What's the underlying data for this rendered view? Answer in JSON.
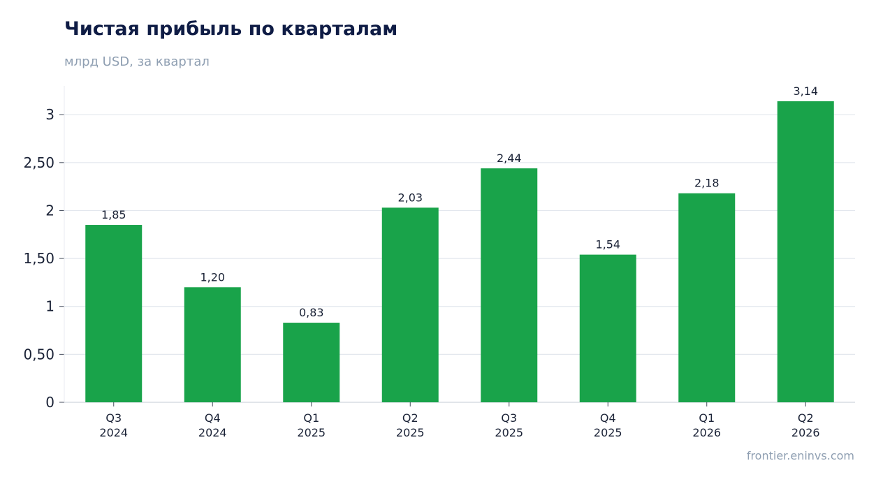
{
  "header": {
    "title": "Чистая прибыль по кварталам",
    "subtitle": "млрд USD, за квартал"
  },
  "footer": {
    "source": "frontier.eninvs.com"
  },
  "colors": {
    "bar": "#19a34a",
    "grid": "#e3e7ee",
    "title": "#0f1c45",
    "muted": "#8f9fb2"
  },
  "chart_data": {
    "type": "bar",
    "title": "Чистая прибыль по кварталам",
    "subtitle": "млрд USD, за квартал",
    "categories": [
      [
        "Q3",
        "2024"
      ],
      [
        "Q4",
        "2024"
      ],
      [
        "Q1",
        "2025"
      ],
      [
        "Q2",
        "2025"
      ],
      [
        "Q3",
        "2025"
      ],
      [
        "Q4",
        "2025"
      ],
      [
        "Q1",
        "2026"
      ],
      [
        "Q2",
        "2026"
      ]
    ],
    "values": [
      1.85,
      1.2,
      0.83,
      2.03,
      2.44,
      1.54,
      2.18,
      3.14
    ],
    "value_labels": [
      "1,85",
      "1,20",
      "0,83",
      "2,03",
      "2,44",
      "1,54",
      "2,18",
      "3,14"
    ],
    "yticks": [
      0,
      0.5,
      1,
      1.5,
      2,
      2.5,
      3
    ],
    "ytick_labels": [
      "0",
      "0,50",
      "1",
      "1,50",
      "2",
      "2,50",
      "3"
    ],
    "ylim": [
      0,
      3.3
    ],
    "grid": true,
    "legend": "none"
  }
}
